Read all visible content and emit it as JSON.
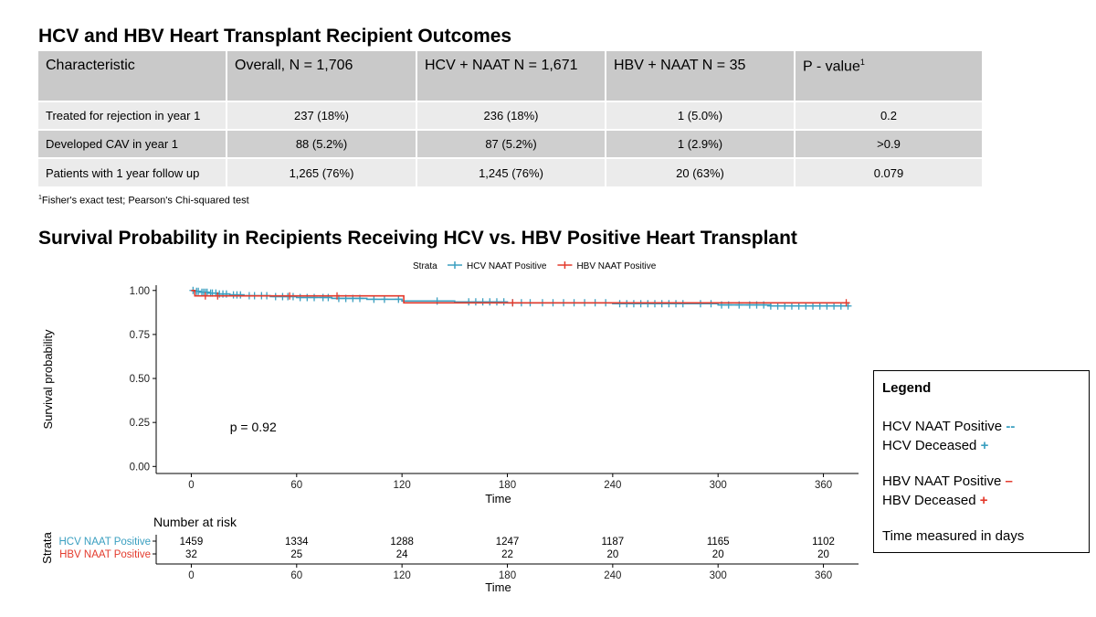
{
  "table": {
    "title": "HCV and HBV Heart Transplant Recipient Outcomes",
    "headers": [
      "Characteristic",
      "Overall, N = 1,706",
      "HCV + NAAT N = 1,671",
      "HBV + NAAT N = 35",
      "P - value"
    ],
    "header_superscript": "1",
    "rows": [
      [
        "Treated for rejection in year 1",
        "237 (18%)",
        "236 (18%)",
        "1 (5.0%)",
        "0.2"
      ],
      [
        "Developed CAV in year 1",
        "88 (5.2%)",
        "87 (5.2%)",
        "1 (2.9%)",
        ">0.9"
      ],
      [
        "Patients with 1 year follow up",
        "1,265 (76%)",
        "1,245 (76%)",
        "20 (63%)",
        "0.079"
      ]
    ],
    "footnote_marker": "1",
    "footnote": "Fisher's exact test; Pearson's Chi-squared test"
  },
  "chart_data": {
    "type": "line",
    "title": "Survival Probability in Recipients Receiving HCV vs. HBV Positive Heart Transplant",
    "xlabel": "Time",
    "ylabel": "Survival probability",
    "xlim": [
      -20,
      380
    ],
    "ylim": [
      -0.04,
      1.03
    ],
    "x_ticks": [
      0,
      60,
      120,
      180,
      240,
      300,
      360
    ],
    "y_ticks": [
      0,
      0.25,
      0.5,
      0.75,
      1.0
    ],
    "y_tick_labels": [
      "0.00",
      "0.25",
      "0.50",
      "0.75",
      "1.00"
    ],
    "grid": false,
    "legend_title": "Strata",
    "legend_position": "top",
    "p_value_label": "p = 0.92",
    "p_value_x": 22,
    "p_value_y": 0.2,
    "series": [
      {
        "name": "HCV NAAT Positive",
        "color": "#3a9fc0",
        "steps": [
          [
            0,
            1.0
          ],
          [
            2,
            0.995
          ],
          [
            5,
            0.99
          ],
          [
            10,
            0.985
          ],
          [
            15,
            0.98
          ],
          [
            22,
            0.975
          ],
          [
            30,
            0.97
          ],
          [
            45,
            0.965
          ],
          [
            60,
            0.96
          ],
          [
            80,
            0.955
          ],
          [
            100,
            0.95
          ],
          [
            120,
            0.94
          ],
          [
            150,
            0.935
          ],
          [
            180,
            0.93
          ],
          [
            240,
            0.925
          ],
          [
            300,
            0.918
          ],
          [
            330,
            0.912
          ],
          [
            375,
            0.912
          ]
        ],
        "censor_x": [
          1,
          3,
          4,
          6,
          7,
          8,
          9,
          11,
          12,
          14,
          16,
          18,
          20,
          24,
          26,
          28,
          33,
          36,
          40,
          43,
          48,
          52,
          55,
          58,
          62,
          66,
          70,
          75,
          78,
          84,
          88,
          92,
          96,
          104,
          110,
          118,
          140,
          158,
          162,
          166,
          170,
          174,
          178,
          183,
          188,
          193,
          200,
          206,
          212,
          218,
          224,
          230,
          236,
          244,
          248,
          252,
          256,
          260,
          264,
          268,
          272,
          276,
          280,
          290,
          296,
          302,
          306,
          312,
          318,
          322,
          326,
          330,
          334,
          338,
          342,
          346,
          350,
          354,
          358,
          362,
          366,
          370,
          374
        ]
      },
      {
        "name": "HBV NAAT Positive",
        "color": "#e33a2c",
        "steps": [
          [
            0,
            1.0
          ],
          [
            2,
            0.969
          ],
          [
            120,
            0.969
          ],
          [
            121,
            0.93
          ],
          [
            375,
            0.93
          ]
        ],
        "censor_x": [
          8,
          15,
          56,
          83,
          183,
          373
        ]
      }
    ],
    "risk_table": {
      "title": "Number at risk",
      "ylabel": "Strata",
      "xlabel": "Time",
      "x": [
        0,
        60,
        120,
        180,
        240,
        300,
        360
      ],
      "rows": [
        {
          "name": "HCV NAAT Positive",
          "values": [
            1459,
            1334,
            1288,
            1247,
            1187,
            1165,
            1102
          ]
        },
        {
          "name": "HBV NAAT Positive",
          "values": [
            32,
            25,
            24,
            22,
            20,
            20,
            20
          ]
        }
      ]
    }
  },
  "legend_box": {
    "title": "Legend",
    "hcv_line_label": "HCV NAAT Positive",
    "hcv_line_symbol": "--",
    "hcv_deceased_label": "HCV Deceased",
    "hcv_deceased_symbol": "+",
    "hbv_line_label": "HBV NAAT Positive",
    "hbv_line_symbol": "–",
    "hbv_deceased_label": "HBV Deceased",
    "hbv_deceased_symbol": "+",
    "note": "Time measured in days"
  }
}
